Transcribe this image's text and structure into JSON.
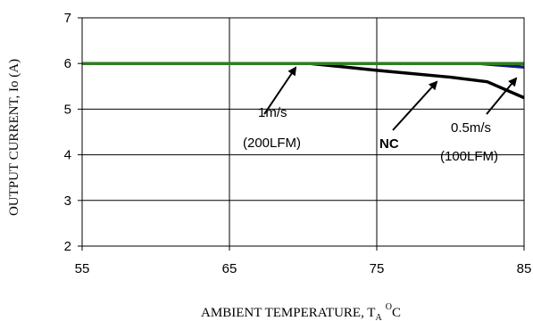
{
  "chart_data": {
    "type": "line",
    "xlabel_parts": {
      "main": "AMBIENT TEMPERATURE, T",
      "sub": "A",
      "sup": "O",
      "tail": "C"
    },
    "ylabel": "OUTPUT CURRENT, Io  (A)",
    "xlim": [
      55,
      85
    ],
    "ylim": [
      2,
      7
    ],
    "x_ticks": [
      55,
      65,
      75,
      85
    ],
    "y_ticks": [
      2,
      3,
      4,
      5,
      6,
      7
    ],
    "grid": true,
    "series": [
      {
        "label_id": "nc",
        "color": "#000000",
        "points": [
          [
            55,
            6.0
          ],
          [
            70.5,
            6.0
          ],
          [
            75,
            5.85
          ],
          [
            80,
            5.7
          ],
          [
            82.5,
            5.6
          ],
          [
            85,
            5.25
          ]
        ]
      },
      {
        "label_id": "0.5ms",
        "color": "#1a1a7a",
        "points": [
          [
            55,
            6.0
          ],
          [
            82,
            6.0
          ],
          [
            85,
            5.92
          ]
        ]
      },
      {
        "label_id": "1ms",
        "color": "#2e7d1e",
        "points": [
          [
            55,
            6.0
          ],
          [
            85,
            6.0
          ]
        ]
      }
    ],
    "annotations": [
      {
        "id": "1ms",
        "lines": [
          "1m/s",
          "(200LFM)"
        ],
        "bold": false
      },
      {
        "id": "nc",
        "lines": [
          "NC"
        ],
        "bold": true
      },
      {
        "id": "0.5ms",
        "lines": [
          "0.5m/s",
          "(100LFM)"
        ],
        "bold": false
      }
    ]
  }
}
